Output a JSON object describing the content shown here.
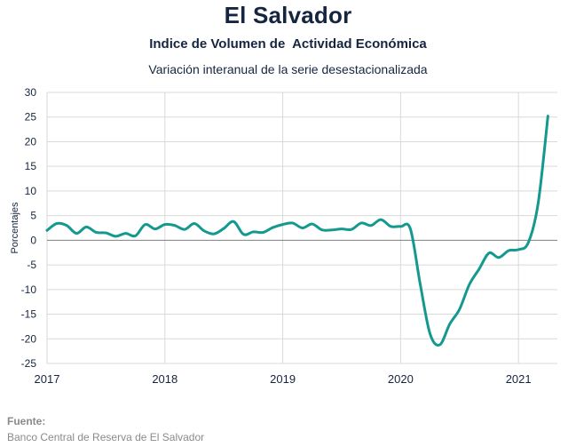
{
  "header": {
    "title": "El Salvador",
    "subtitle": "Indice de Volumen de  Actividad Económica",
    "subtitle2": "Variación interanual de la serie desestacionalizada"
  },
  "footer": {
    "source_label": "Fuente:",
    "source_text": "Banco Central de Reserva de El Salvador"
  },
  "colors": {
    "line": "#14998f",
    "grid": "#d9d9d9",
    "zero_line": "#7f7f7f",
    "text": "#16253f"
  },
  "chart_data": {
    "type": "line",
    "title": "",
    "xlabel": "",
    "ylabel": "Porcentajes",
    "ylim": [
      -25,
      30
    ],
    "yticks": [
      30,
      25,
      20,
      15,
      10,
      5,
      0,
      -5,
      -10,
      -15,
      -20,
      -25
    ],
    "xticks": [
      2017,
      2018,
      2019,
      2020,
      2021
    ],
    "xlim": [
      2017.0,
      2021.33
    ],
    "grid": true,
    "series": [
      {
        "name": "",
        "x": [
          2017.0,
          2017.083,
          2017.167,
          2017.25,
          2017.333,
          2017.417,
          2017.5,
          2017.583,
          2017.667,
          2017.75,
          2017.833,
          2017.917,
          2018.0,
          2018.083,
          2018.167,
          2018.25,
          2018.333,
          2018.417,
          2018.5,
          2018.583,
          2018.667,
          2018.75,
          2018.833,
          2018.917,
          2019.0,
          2019.083,
          2019.167,
          2019.25,
          2019.333,
          2019.417,
          2019.5,
          2019.583,
          2019.667,
          2019.75,
          2019.833,
          2019.917,
          2020.0,
          2020.083,
          2020.167,
          2020.25,
          2020.333,
          2020.417,
          2020.5,
          2020.583,
          2020.667,
          2020.75,
          2020.833,
          2020.917,
          2021.0,
          2021.083,
          2021.167,
          2021.25
        ],
        "values": [
          2.0,
          3.4,
          3.0,
          1.4,
          2.7,
          1.6,
          1.5,
          0.8,
          1.4,
          0.9,
          3.2,
          2.3,
          3.2,
          3.0,
          2.2,
          3.4,
          1.9,
          1.3,
          2.4,
          3.8,
          1.2,
          1.7,
          1.6,
          2.6,
          3.2,
          3.5,
          2.5,
          3.3,
          2.1,
          2.1,
          2.3,
          2.2,
          3.5,
          3.0,
          4.2,
          2.8,
          2.8,
          2.3,
          -9.0,
          -19.0,
          -21.2,
          -17.0,
          -14.0,
          -9.0,
          -5.8,
          -2.6,
          -3.5,
          -2.1,
          -1.9,
          -0.5,
          7.5,
          25.2
        ]
      }
    ]
  }
}
